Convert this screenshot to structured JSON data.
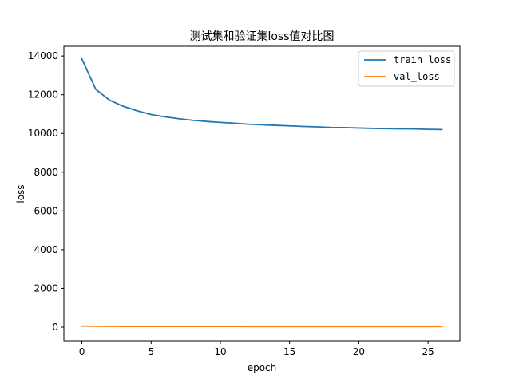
{
  "chart_data": {
    "type": "line",
    "title": "测试集和验证集loss值对比图",
    "xlabel": "epoch",
    "ylabel": "loss",
    "x": [
      0,
      1,
      2,
      3,
      4,
      5,
      6,
      7,
      8,
      9,
      10,
      11,
      12,
      13,
      14,
      15,
      16,
      17,
      18,
      19,
      20,
      21,
      22,
      23,
      24,
      25,
      26
    ],
    "xlim": [
      -1.3,
      27.3
    ],
    "ylim": [
      -700,
      14500
    ],
    "xticks": [
      0,
      5,
      10,
      15,
      20,
      25
    ],
    "yticks": [
      0,
      2000,
      4000,
      6000,
      8000,
      10000,
      12000,
      14000
    ],
    "legend_position": "top-right",
    "series": [
      {
        "name": "train_loss",
        "color": "#1f77b4",
        "values": [
          13850,
          12280,
          11720,
          11400,
          11170,
          10980,
          10860,
          10760,
          10680,
          10620,
          10570,
          10530,
          10480,
          10450,
          10420,
          10390,
          10360,
          10340,
          10310,
          10300,
          10280,
          10260,
          10250,
          10240,
          10230,
          10210,
          10200
        ]
      },
      {
        "name": "val_loss",
        "color": "#ff7f0e",
        "values": [
          55,
          45,
          42,
          40,
          39,
          38,
          37,
          36,
          36,
          35,
          35,
          35,
          34,
          34,
          34,
          34,
          33,
          33,
          33,
          33,
          33,
          33,
          32,
          32,
          32,
          32,
          32
        ]
      }
    ]
  }
}
